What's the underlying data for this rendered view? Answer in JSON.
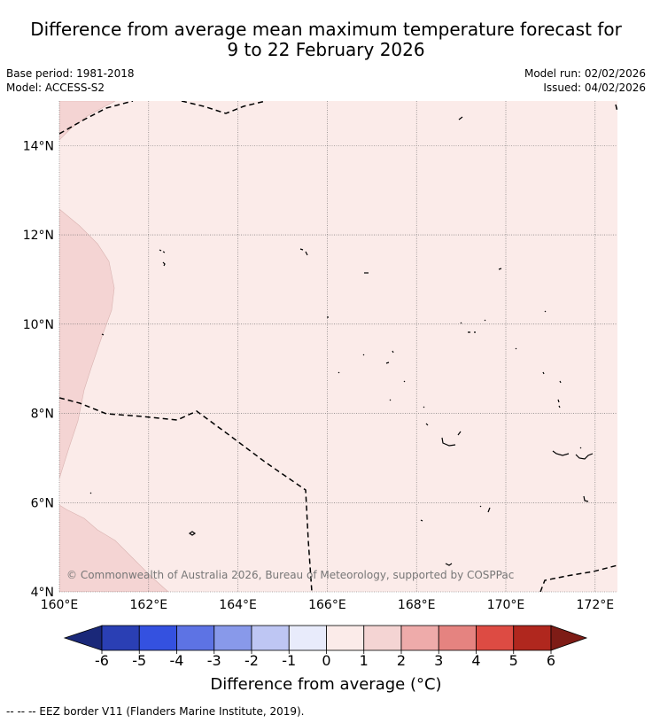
{
  "title": {
    "line1": "Difference from average mean maximum temperature forecast for",
    "line2": "9 to 22 February 2026"
  },
  "meta": {
    "base_period": "Base period: 1981-2018",
    "model": "Model: ACCESS-S2",
    "model_run": "Model run: 02/02/2026",
    "issued": "Issued: 04/02/2026"
  },
  "map": {
    "longitude_ticks": [
      "160°E",
      "162°E",
      "164°E",
      "166°E",
      "168°E",
      "170°E",
      "172°E"
    ],
    "latitude_ticks": [
      "14°N",
      "12°N",
      "10°N",
      "8°N",
      "6°N",
      "4°N"
    ],
    "lon_range": [
      160,
      172.5
    ],
    "lat_range": [
      4,
      15
    ],
    "copyright": "© Commonwealth of Australia 2026, Bureau of Meteorology, supported by COSPPac",
    "colors": {
      "background_anomaly_0_1": "#fbebe9",
      "anomaly_1_2": "#f4d4d3",
      "land": "#000000",
      "eez_border": "#000000"
    }
  },
  "colorbar": {
    "labels": [
      "-6",
      "-5",
      "-4",
      "-3",
      "-2",
      "-1",
      "0",
      "1",
      "2",
      "3",
      "4",
      "5",
      "6"
    ],
    "colors": [
      "#1a2879",
      "#2a3fb4",
      "#3451e0",
      "#5d73e4",
      "#8899ea",
      "#bec6f3",
      "#e8ebfb",
      "#fbebe9",
      "#f4d4d3",
      "#eeabaa",
      "#e58380",
      "#dd4b43",
      "#b0271e",
      "#7e1c16"
    ],
    "title": "Difference from average (°C)"
  },
  "footnote": "--  --  -- EEZ border V11 (Flanders Marine Institute, 2019)."
}
